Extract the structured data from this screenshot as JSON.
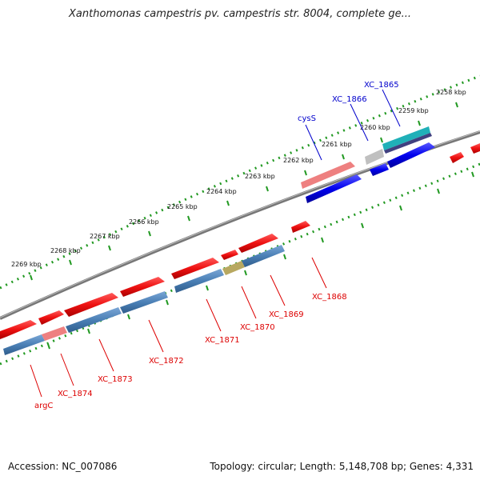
{
  "title": "Xanthomonas campestris pv. campestris str. 8004, complete ge...",
  "footer": {
    "accession": "Accession: NC_007086",
    "topology": "Topology: circular; Length: 5,148,708 bp; Genes: 4,331"
  },
  "colors": {
    "forward_cds": "#ee1111",
    "forward_cds_light": "#ee8080",
    "reverse_cds_red": "#ee1111",
    "reverse_cds_blue": "#0000ee",
    "backbone": "#888888",
    "blue_gene": "#4a7fb5",
    "olive_gene": "#b8a860",
    "teal_gene": "#20b0b8",
    "tick_green": "#229922",
    "label_red": "#dd0000",
    "label_blue": "#0000cc"
  },
  "scale_labels": [
    "2269 kbp",
    "2268 kbp",
    "2267 kbp",
    "2266 kbp",
    "2265 kbp",
    "2264 kbp",
    "2263 kbp",
    "2262 kbp",
    "2261 kbp",
    "2260 kbp",
    "2259 kbp",
    "2258 kbp"
  ],
  "gene_labels_red": [
    "argC",
    "XC_1874",
    "XC_1873",
    "XC_1872",
    "XC_1871",
    "XC_1870",
    "XC_1869",
    "XC_1868"
  ],
  "gene_labels_blue": [
    "cysS",
    "XC_1866",
    "XC_1865"
  ]
}
